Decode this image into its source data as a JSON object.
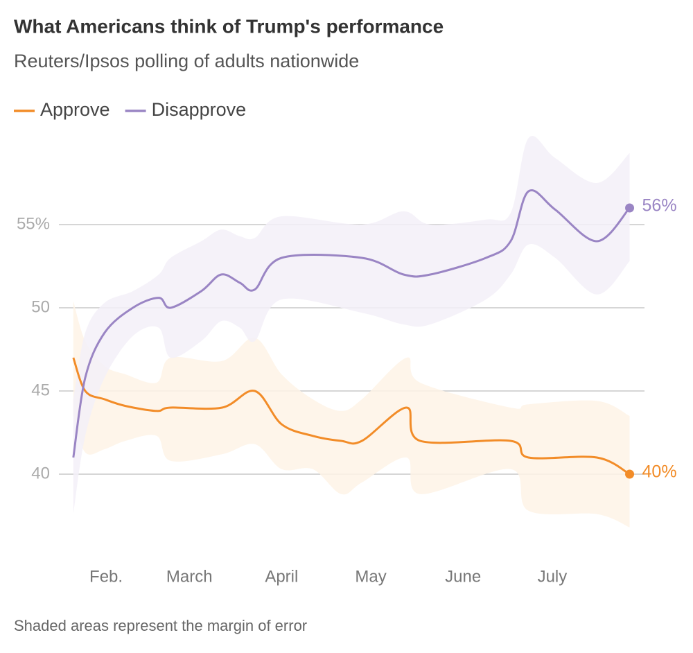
{
  "chart_data": {
    "type": "line",
    "title": "What Americans think of Trump's performance",
    "subtitle": "Reuters/Ipsos polling of adults nationwide",
    "note": "Shaded areas represent the margin of error",
    "xlim": [
      1,
      213
    ],
    "xticks": [
      {
        "value": 32,
        "label": "Feb."
      },
      {
        "value": 60,
        "label": "March"
      },
      {
        "value": 91,
        "label": "April"
      },
      {
        "value": 121,
        "label": "May"
      },
      {
        "value": 152,
        "label": "June"
      },
      {
        "value": 182,
        "label": "July"
      }
    ],
    "ylim": [
      35.5,
      60.5
    ],
    "yticks": [
      40,
      45,
      50,
      {
        "value": 55,
        "label": "55%"
      }
    ],
    "grid": true,
    "series": [
      {
        "name": "Approve",
        "color": "#f28c28",
        "band_color": "#fef3e6",
        "x": [
          21,
          25,
          31.5,
          38.5,
          49,
          53.7,
          71,
          82,
          91,
          101.5,
          111,
          118,
          133,
          137.6,
          168,
          174,
          197,
          208
        ],
        "values": [
          47,
          45,
          44.5,
          44.1,
          43.8,
          44,
          44,
          45,
          43,
          42.3,
          42,
          42,
          44,
          42,
          42,
          41,
          41,
          40
        ],
        "high": [
          50.4,
          48,
          46.5,
          46,
          45.5,
          47,
          46.8,
          48.2,
          46,
          44.5,
          43.8,
          44.5,
          47,
          45.5,
          44,
          44.2,
          44.4,
          43.5
        ],
        "low": [
          43.5,
          41.3,
          41.5,
          42,
          42.3,
          40.8,
          41.2,
          41.8,
          40.3,
          40.3,
          38.8,
          39.5,
          41,
          38.8,
          40.3,
          37.8,
          37.6,
          36.8
        ],
        "value_labels": [
          null,
          null,
          null,
          null,
          null,
          null,
          null,
          null,
          null,
          null,
          null,
          null,
          null,
          null,
          null,
          null,
          null,
          "40%"
        ]
      },
      {
        "name": "Disapprove",
        "color": "#9a85c4",
        "band_color": "#f3f0f8",
        "x": [
          21,
          25,
          31.5,
          41,
          49.7,
          53.7,
          64,
          70.7,
          77,
          82,
          91,
          118,
          132,
          141,
          159.7,
          168,
          174,
          183,
          197,
          208
        ],
        "values": [
          41,
          45.8,
          48.5,
          50,
          50.6,
          50,
          51,
          52,
          51.5,
          51.1,
          53,
          53,
          52,
          52,
          53,
          54,
          57,
          55.9,
          54,
          56
        ],
        "high": [
          44.5,
          48.5,
          50.3,
          51,
          52,
          53,
          54,
          54.7,
          54.3,
          54.2,
          55.5,
          55,
          55.8,
          55,
          55.3,
          55.7,
          60.2,
          59,
          57.5,
          59.3
        ],
        "low": [
          37.6,
          42.3,
          45.8,
          48.3,
          48.8,
          47,
          48,
          49.2,
          48.8,
          48,
          50.5,
          49.7,
          49,
          49,
          50.5,
          52,
          53.8,
          53,
          50.8,
          52.8
        ],
        "value_labels": [
          null,
          null,
          null,
          null,
          null,
          null,
          null,
          null,
          null,
          null,
          null,
          null,
          null,
          null,
          null,
          null,
          null,
          null,
          null,
          "56%"
        ]
      }
    ]
  }
}
